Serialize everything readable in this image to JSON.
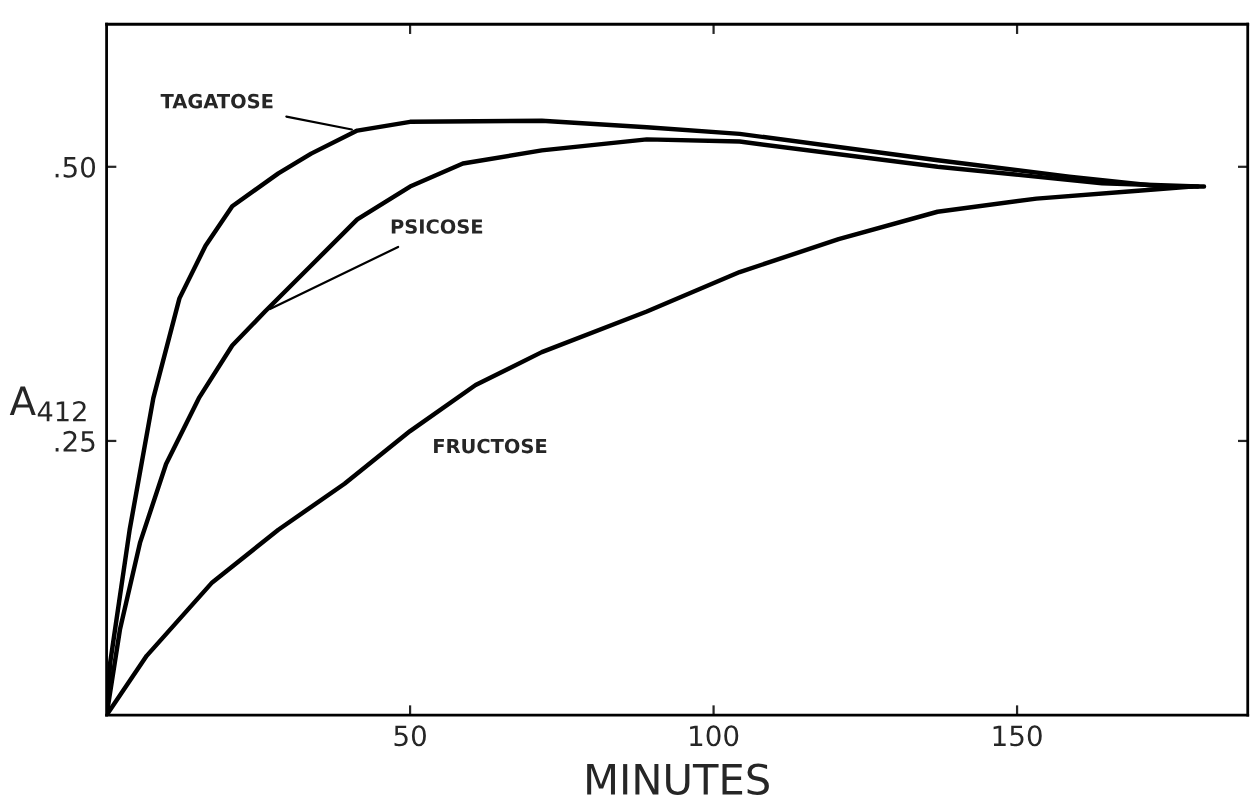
{
  "chart_data": {
    "type": "line",
    "xlabel": "MINUTES",
    "ylabel": "A$_{412}$",
    "xlim": [
      0,
      188
    ],
    "ylim": [
      0,
      0.63
    ],
    "xticks": [
      50,
      100,
      150
    ],
    "yticks": [
      {
        "value": 0.25,
        "label": ".25"
      },
      {
        "value": 0.5,
        "label": ".50"
      }
    ],
    "grid": false,
    "legend": false,
    "marker": "none",
    "line_style": "solid",
    "series": [
      {
        "name": "TAGATOSE",
        "color": "#000000",
        "x": [
          0,
          0.6,
          3.8,
          7.7,
          12.0,
          16.3,
          20.7,
          28.3,
          33.7,
          41.3,
          50,
          71.7,
          89,
          104.3,
          136.9,
          158.6,
          173.8,
          180.8
        ],
        "values": [
          0,
          0.048,
          0.169,
          0.289,
          0.38,
          0.428,
          0.464,
          0.494,
          0.512,
          0.533,
          0.541,
          0.542,
          0.536,
          0.53,
          0.506,
          0.491,
          0.482,
          0.482
        ]
      },
      {
        "name": "PSICOSE",
        "color": "#000000",
        "x": [
          0,
          2.2,
          5.5,
          9.8,
          15.2,
          20.7,
          26.1,
          33.7,
          41.3,
          50,
          58.7,
          71.7,
          89,
          104.3,
          136.9,
          164,
          179.8
        ],
        "values": [
          0,
          0.078,
          0.157,
          0.229,
          0.289,
          0.337,
          0.368,
          0.41,
          0.452,
          0.482,
          0.503,
          0.515,
          0.525,
          0.523,
          0.5,
          0.485,
          0.482
        ]
      },
      {
        "name": "FRUCTOSE",
        "color": "#000000",
        "x": [
          0,
          6.6,
          17.4,
          28.3,
          39.2,
          50,
          60.8,
          71.7,
          89,
          104.3,
          120.6,
          136.9,
          153.2,
          169.4,
          178.8
        ],
        "values": [
          0,
          0.054,
          0.121,
          0.169,
          0.211,
          0.259,
          0.301,
          0.331,
          0.368,
          0.404,
          0.434,
          0.459,
          0.471,
          0.478,
          0.482
        ]
      }
    ]
  }
}
